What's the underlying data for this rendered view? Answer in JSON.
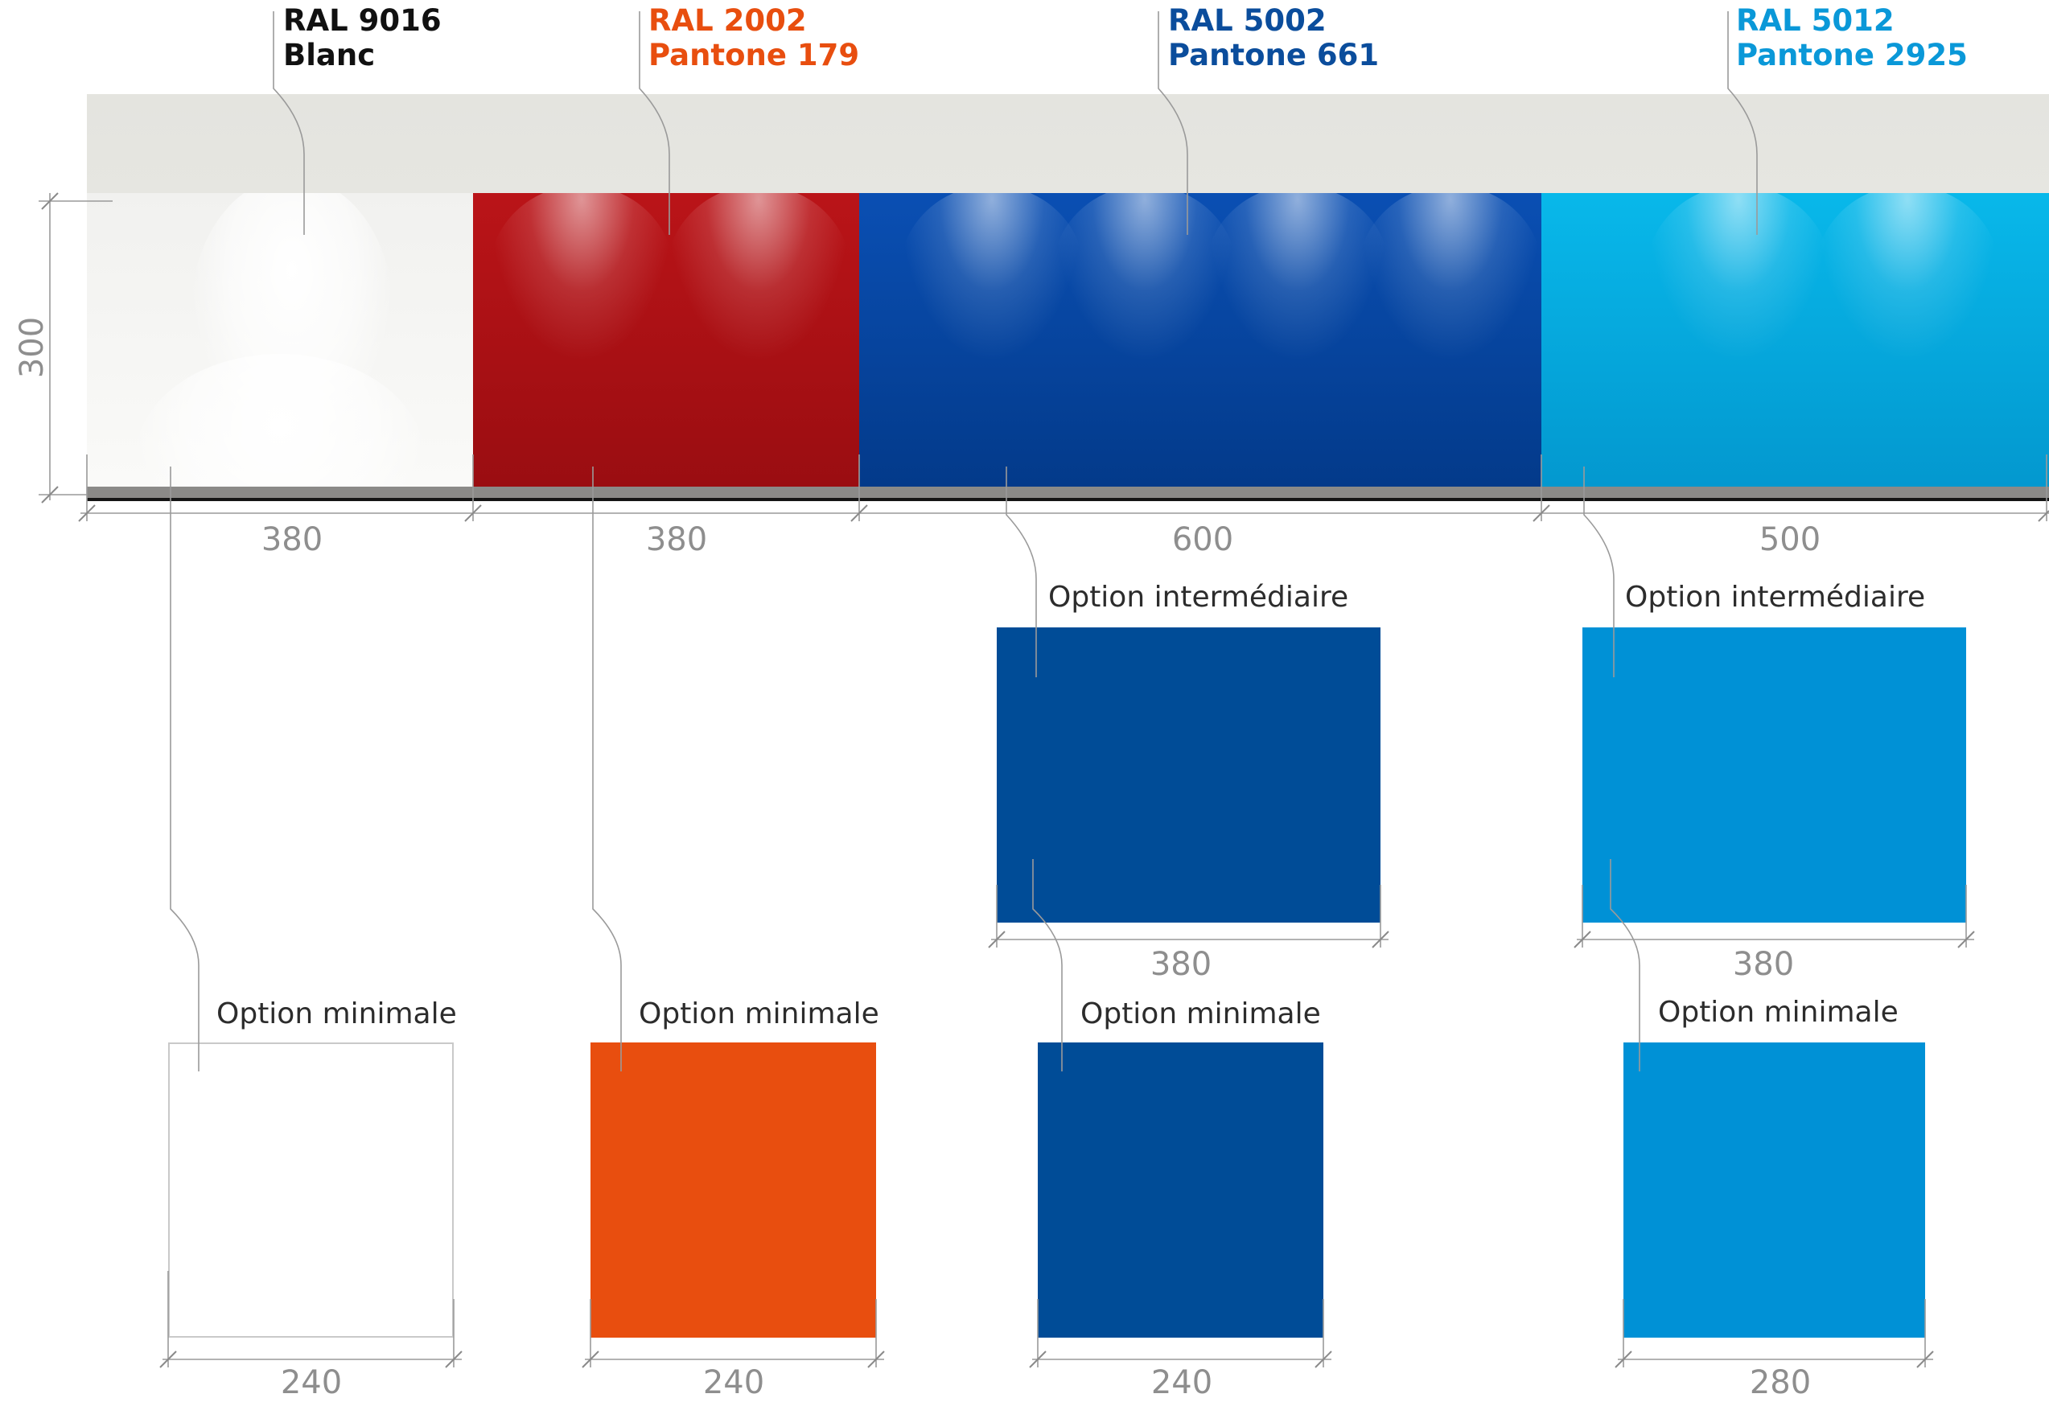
{
  "colors": {
    "white": "#ffffff",
    "orange": "#e84e0f",
    "blue": "#004c97",
    "cyan": "#0091d6",
    "label_white": "#111111",
    "label_orange": "#e84e0f",
    "label_blue": "#0b4d9c",
    "label_cyan": "#0a98d8"
  },
  "labels": [
    {
      "line1": "RAL 9016",
      "line2": "Blanc"
    },
    {
      "line1": "RAL 2002",
      "line2": "Pantone 179"
    },
    {
      "line1": "RAL 5002",
      "line2": "Pantone 661"
    },
    {
      "line1": "RAL 5012",
      "line2": "Pantone 2925"
    }
  ],
  "height_dimension": "300",
  "wall_widths": [
    "380",
    "380",
    "600",
    "500"
  ],
  "intermediate": [
    {
      "label": "Option intermédiaire",
      "width": "380"
    },
    {
      "label": "Option intermédiaire",
      "width": "380"
    }
  ],
  "minimal": [
    {
      "label": "Option minimale",
      "width": "240"
    },
    {
      "label": "Option minimale",
      "width": "240"
    },
    {
      "label": "Option minimale",
      "width": "240"
    },
    {
      "label": "Option minimale",
      "width": "280"
    }
  ]
}
